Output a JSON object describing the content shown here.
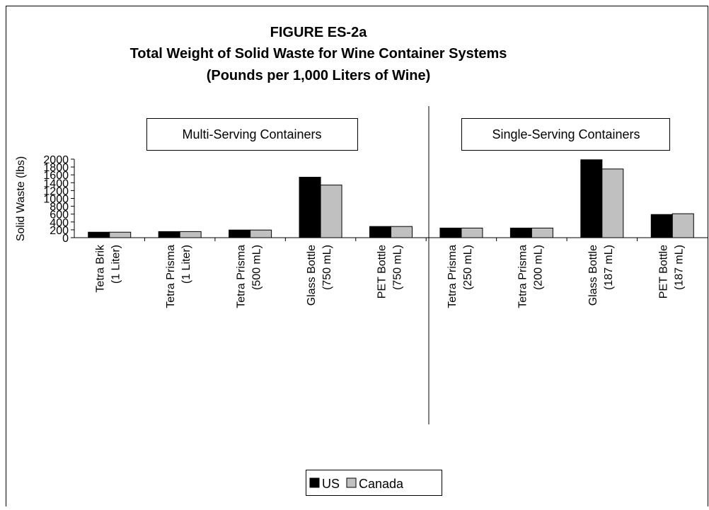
{
  "chart_data": {
    "type": "bar",
    "title": [
      "FIGURE ES-2a",
      "Total Weight of Solid Waste for Wine Container Systems",
      "(Pounds per 1,000 Liters of Wine)"
    ],
    "y_label": "Solid Waste (lbs)",
    "groups": [
      "Multi-Serving Containers",
      "Single-Serving Containers"
    ],
    "categories": [
      [
        "Tetra Brik",
        "(1 Liter)"
      ],
      [
        "Tetra Prisma",
        "(1 Liter)"
      ],
      [
        "Tetra Prisma",
        "(500 mL)"
      ],
      [
        "Glass Bottle",
        "(750 mL)"
      ],
      [
        "PET Bottle",
        "(750 mL)"
      ],
      [
        "Tetra Prisma",
        "(250 mL)"
      ],
      [
        "Tetra Prisma",
        "(200 mL)"
      ],
      [
        "Glass Bottle",
        "(187 mL)"
      ],
      [
        "PET Bottle",
        "(187 mL)"
      ]
    ],
    "series": [
      {
        "name": "US",
        "color": "#000000",
        "values": [
          140,
          155,
          195,
          1540,
          285,
          245,
          245,
          1985,
          590
        ]
      },
      {
        "name": "Canada",
        "color": "#c0c0c0",
        "values": [
          140,
          155,
          195,
          1340,
          285,
          245,
          245,
          1750,
          610
        ]
      }
    ],
    "ylim": [
      0,
      2000
    ],
    "yticks": [
      0,
      200,
      400,
      600,
      800,
      1000,
      1200,
      1400,
      1600,
      1800,
      2000
    ],
    "grid": false,
    "legend": "bottom"
  }
}
